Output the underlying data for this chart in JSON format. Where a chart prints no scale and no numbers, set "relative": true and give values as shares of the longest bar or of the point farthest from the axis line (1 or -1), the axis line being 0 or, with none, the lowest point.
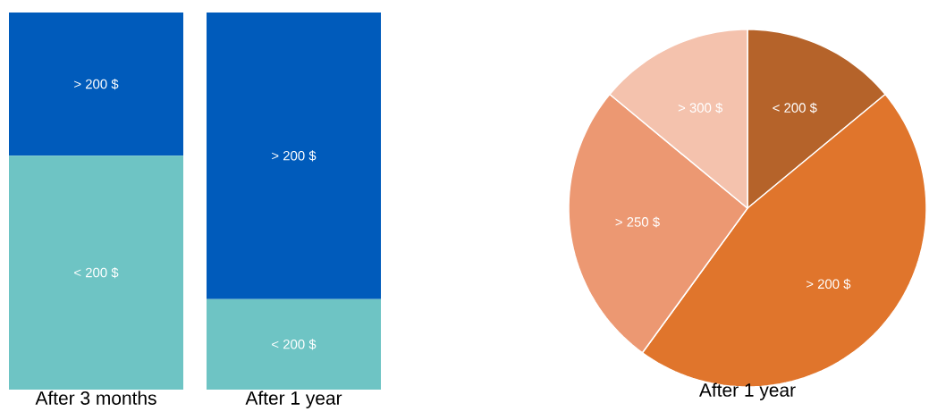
{
  "chart_data": [
    {
      "type": "bar",
      "stacked": true,
      "relative": true,
      "categories": [
        "After 3 months",
        "After 1 year"
      ],
      "series": [
        {
          "name": "< 200 $",
          "color": "#6ec4c4",
          "values": [
            0.62,
            0.24
          ]
        },
        {
          "name": "> 200 $",
          "color": "#005bbb",
          "values": [
            0.38,
            0.76
          ]
        }
      ]
    },
    {
      "type": "pie",
      "xlabel": "After 1 year",
      "categories": [
        "< 200 $",
        "> 200 $",
        "> 250 $",
        "> 300 $"
      ],
      "values": [
        14,
        46,
        26,
        14
      ],
      "colors": [
        "#b5632a",
        "#e0752c",
        "#ec9872",
        "#f4c2ad"
      ]
    }
  ]
}
